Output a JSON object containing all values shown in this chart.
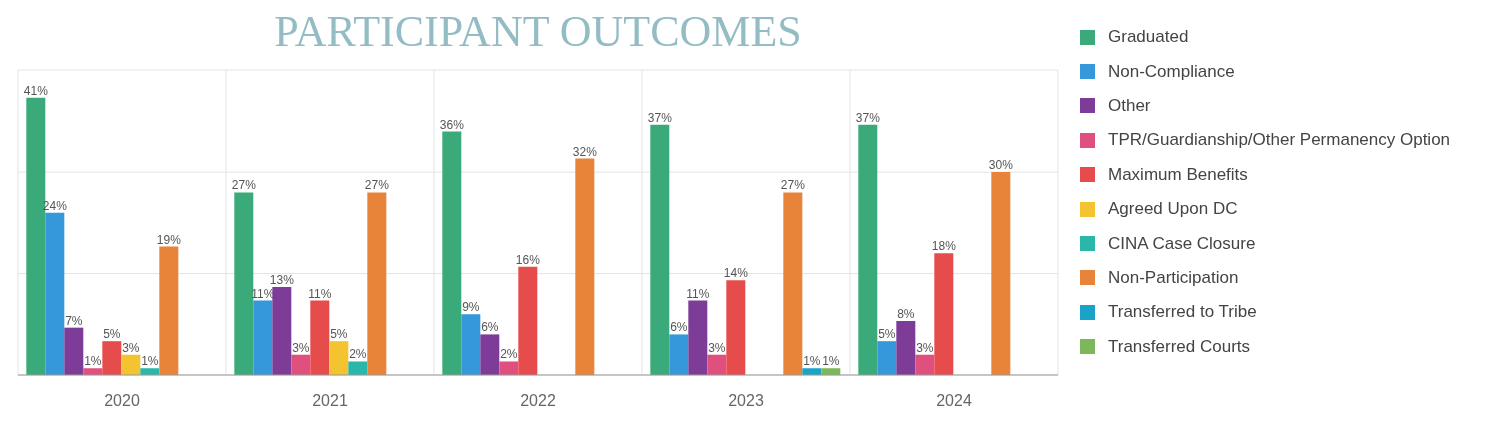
{
  "chart_data": {
    "type": "bar",
    "title": "PARTICIPANT OUTCOMES",
    "categories": [
      "2020",
      "2021",
      "2022",
      "2023",
      "2024"
    ],
    "series": [
      {
        "name": "Graduated",
        "color": "#3aaa7a",
        "values": [
          41,
          27,
          36,
          37,
          37
        ],
        "value_labels": [
          "41%",
          "27%",
          "36%",
          "37%",
          "37%"
        ]
      },
      {
        "name": "Non-Compliance",
        "color": "#3498db",
        "values": [
          24,
          11,
          9,
          6,
          5
        ],
        "value_labels": [
          "24%",
          "11%",
          "9%",
          "6%",
          "5%"
        ]
      },
      {
        "name": "Other",
        "color": "#7d3c98",
        "values": [
          7,
          13,
          6,
          11,
          8
        ],
        "value_labels": [
          "7%",
          "13%",
          "6%",
          "11%",
          "8%"
        ]
      },
      {
        "name": "TPR/Guardianship/Other Permanency Option",
        "color": "#e0507f",
        "values": [
          1,
          3,
          2,
          3,
          3
        ],
        "value_labels": [
          "1%",
          "3%",
          "2%",
          "3%",
          "3%"
        ]
      },
      {
        "name": "Maximum Benefits",
        "color": "#e74c4c",
        "values": [
          5,
          11,
          16,
          14,
          18
        ],
        "value_labels": [
          "5%",
          "11%",
          "16%",
          "14%",
          "18%"
        ]
      },
      {
        "name": "Agreed Upon DC",
        "color": "#f4c430",
        "values": [
          3,
          5,
          null,
          null,
          null
        ],
        "value_labels": [
          "3%",
          "5%",
          null,
          null,
          null
        ]
      },
      {
        "name": "CINA Case Closure",
        "color": "#2ab7a9",
        "values": [
          1,
          2,
          null,
          null,
          null
        ],
        "value_labels": [
          "1%",
          "2%",
          null,
          null,
          null
        ]
      },
      {
        "name": "Non-Participation",
        "color": "#e8833a",
        "values": [
          19,
          27,
          32,
          27,
          30
        ],
        "value_labels": [
          "19%",
          "27%",
          "32%",
          "27%",
          "30%"
        ]
      },
      {
        "name": "Transferred to Tribe",
        "color": "#1aa3c9",
        "values": [
          null,
          null,
          null,
          1,
          null
        ],
        "value_labels": [
          null,
          null,
          null,
          "1%",
          null
        ]
      },
      {
        "name": "Transferred Courts",
        "color": "#7cb85a",
        "values": [
          null,
          null,
          null,
          1,
          null
        ],
        "value_labels": [
          null,
          null,
          null,
          "1%",
          null
        ]
      }
    ],
    "tick_labels": "x",
    "grid": true,
    "legend": "top right"
  }
}
